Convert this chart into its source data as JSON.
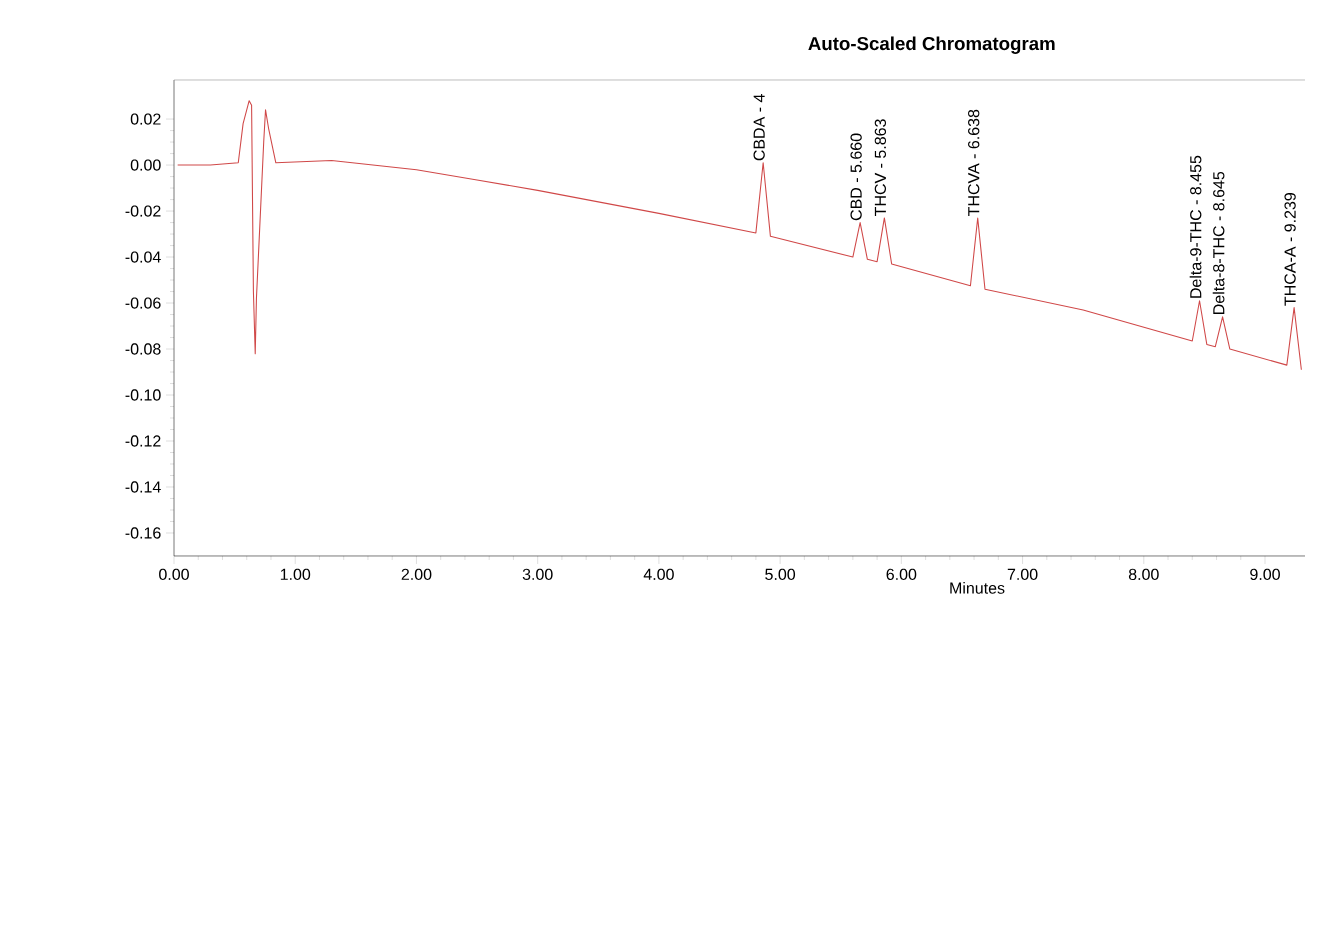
{
  "chart_data": {
    "type": "line",
    "title": "Auto-Scaled Chromatogram",
    "xlabel": "Minutes",
    "x": [
      0.03,
      0.3,
      0.53,
      0.57,
      0.62,
      0.64,
      0.655,
      0.67,
      0.68,
      0.74,
      0.755,
      0.78,
      0.82,
      0.84,
      1.3,
      2.0,
      2.5,
      3.0,
      4.0,
      4.8,
      4.86,
      4.92,
      5.6,
      5.66,
      5.72,
      5.8,
      5.86,
      5.92,
      6.57,
      6.63,
      6.69,
      7.5,
      8.4,
      8.46,
      8.52,
      8.59,
      8.65,
      8.71,
      9.18,
      9.24,
      9.3
    ],
    "values": [
      0.0,
      0.0,
      0.001,
      0.018,
      0.028,
      0.026,
      -0.055,
      -0.082,
      -0.058,
      0.01,
      0.024,
      0.016,
      0.006,
      0.001,
      0.002,
      -0.002,
      -0.0065,
      -0.011,
      -0.021,
      -0.0295,
      0.001,
      -0.031,
      -0.04,
      -0.025,
      -0.041,
      -0.042,
      -0.023,
      -0.043,
      -0.0525,
      -0.023,
      -0.054,
      -0.063,
      -0.0765,
      -0.059,
      -0.078,
      -0.079,
      -0.066,
      -0.08,
      -0.087,
      -0.062,
      -0.089
    ],
    "color": "#d04848",
    "xlim": [
      0,
      9.33
    ],
    "ylim": [
      -0.17,
      0.037
    ],
    "xticks": [
      {
        "value": 0,
        "label": "0.00"
      },
      {
        "value": 1,
        "label": "1.00"
      },
      {
        "value": 2,
        "label": "2.00"
      },
      {
        "value": 3,
        "label": "3.00"
      },
      {
        "value": 4,
        "label": "4.00"
      },
      {
        "value": 5,
        "label": "5.00"
      },
      {
        "value": 6,
        "label": "6.00"
      },
      {
        "value": 7,
        "label": "7.00"
      },
      {
        "value": 8,
        "label": "8.00"
      },
      {
        "value": 9,
        "label": "9.00"
      }
    ],
    "yticks": [
      {
        "value": 0.02,
        "label": "0.02"
      },
      {
        "value": 0,
        "label": "0.00"
      },
      {
        "value": -0.02,
        "label": "-0.02"
      },
      {
        "value": -0.04,
        "label": "-0.04"
      },
      {
        "value": -0.06,
        "label": "-0.06"
      },
      {
        "value": -0.08,
        "label": "-0.08"
      },
      {
        "value": -0.1,
        "label": "-0.10"
      },
      {
        "value": -0.12,
        "label": "-0.12"
      },
      {
        "value": -0.14,
        "label": "-0.14"
      },
      {
        "value": -0.16,
        "label": "-0.16"
      }
    ],
    "annotations": [
      {
        "text": "CBDA - 4",
        "x": 4.86,
        "y": 0.001
      },
      {
        "text": "CBD - 5.660",
        "x": 5.66,
        "y": -0.025
      },
      {
        "text": "THCV - 5.863",
        "x": 5.86,
        "y": -0.023
      },
      {
        "text": "THCVA - 6.638",
        "x": 6.63,
        "y": -0.023
      },
      {
        "text": "Delta-9-THC - 8.455",
        "x": 8.46,
        "y": -0.059
      },
      {
        "text": "Delta-8-THC - 8.645",
        "x": 8.65,
        "y": -0.066
      },
      {
        "text": "THCA-A - 9.239",
        "x": 9.24,
        "y": -0.062
      }
    ]
  }
}
